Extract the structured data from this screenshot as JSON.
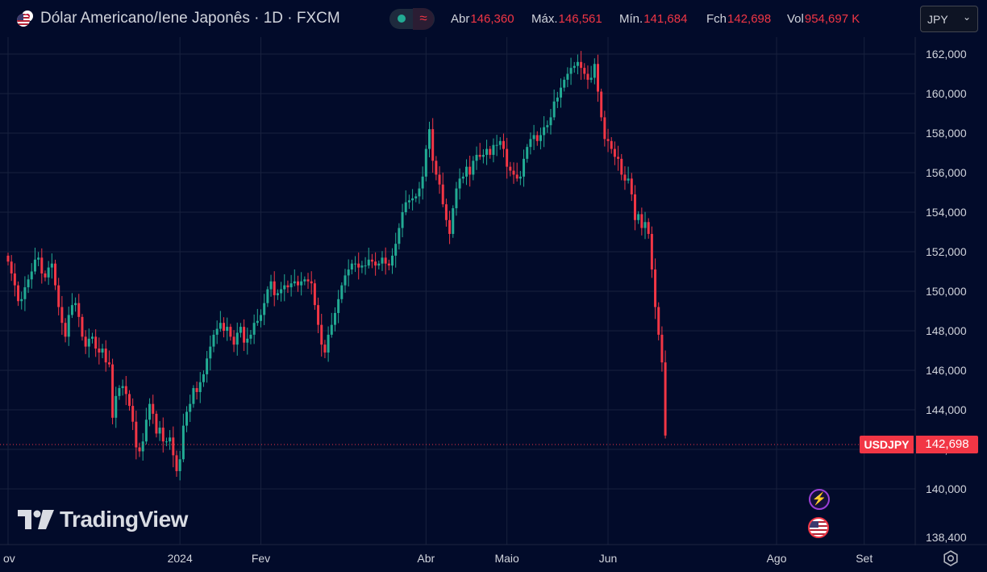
{
  "header": {
    "title": "Dólar Americano/Iene Japonês · 1D · FXCM",
    "flag_icon": "us-jp-flag-icon",
    "ohlc": [
      {
        "label": "Abr",
        "value": "146,360"
      },
      {
        "label": "Máx.",
        "value": "146,561"
      },
      {
        "label": "Mín.",
        "value": "141,684"
      },
      {
        "label": "Fch",
        "value": "142,698"
      },
      {
        "label": "Vol",
        "value": "954,697 K"
      }
    ],
    "currency_button": "JPY",
    "wave_icon": "≈"
  },
  "price_tag": {
    "symbol": "USDJPY",
    "value": "142,698"
  },
  "logo": {
    "text": "TradingView"
  },
  "colors": {
    "background": "#020b2a",
    "up": "#22ab94",
    "down": "#f23645",
    "grid": "#18213e",
    "text": "#d1d4dc"
  },
  "chart_data": {
    "type": "candlestick",
    "title": "Dólar Americano/Iene Japonês · 1D · FXCM",
    "y_ticks": [
      "162,000",
      "160,000",
      "158,000",
      "156,000",
      "154,000",
      "152,000",
      "150,000",
      "148,000",
      "146,000",
      "144,000",
      "142,000",
      "140,000",
      "138,400"
    ],
    "y_tick_values": [
      162,
      160,
      158,
      156,
      154,
      152,
      150,
      148,
      146,
      144,
      142,
      140,
      138.4
    ],
    "x_ticks": [
      "ov",
      "2024",
      "Fev",
      "Abr",
      "Maio",
      "Jun",
      "Ago",
      "Set"
    ],
    "x_tick_index": [
      0,
      51,
      75,
      124,
      148,
      178,
      228,
      254
    ],
    "last_price": 142.698,
    "closes": [
      151.5,
      150.9,
      150.3,
      149.5,
      149.6,
      150.2,
      150.6,
      151.0,
      151.6,
      151.7,
      150.9,
      150.7,
      151.2,
      151.4,
      150.3,
      149.2,
      148.4,
      147.7,
      148.8,
      149.3,
      149.4,
      148.7,
      147.7,
      147.2,
      147.6,
      147.7,
      147.1,
      146.9,
      147.1,
      146.4,
      146.3,
      143.6,
      144.7,
      145.1,
      145.2,
      144.8,
      144.2,
      143.4,
      142.1,
      141.9,
      142.4,
      143.5,
      144.3,
      143.8,
      142.8,
      143.1,
      142.4,
      142.4,
      142.6,
      141.7,
      140.9,
      141.5,
      143.2,
      143.9,
      144.3,
      145.1,
      144.9,
      145.4,
      145.8,
      146.6,
      147.2,
      147.8,
      148.1,
      148.4,
      148.0,
      148.2,
      147.7,
      147.3,
      147.9,
      148.2,
      147.4,
      147.6,
      147.8,
      148.4,
      148.5,
      148.8,
      149.4,
      150.1,
      150.5,
      149.8,
      149.9,
      150.1,
      150.3,
      150.2,
      150.4,
      150.5,
      150.3,
      150.5,
      150.6,
      150.5,
      150.4,
      149.3,
      148.3,
      147.3,
      146.9,
      147.8,
      148.3,
      148.9,
      149.6,
      150.3,
      150.8,
      151.1,
      151.4,
      151.4,
      151.2,
      151.3,
      151.3,
      151.6,
      151.5,
      151.3,
      151.4,
      151.7,
      151.4,
      151.3,
      151.8,
      152.4,
      153.2,
      154.0,
      154.5,
      154.6,
      154.7,
      154.8,
      155.2,
      155.8,
      157.2,
      158.2,
      156.6,
      155.9,
      155.4,
      154.4,
      153.6,
      152.9,
      154.2,
      155.2,
      155.7,
      155.8,
      156.3,
      155.9,
      156.6,
      156.9,
      156.8,
      156.9,
      157.2,
      156.9,
      157.4,
      157.4,
      157.6,
      157.2,
      156.3,
      156.1,
      155.9,
      155.7,
      155.8,
      156.7,
      157.3,
      157.7,
      157.9,
      157.6,
      157.9,
      158.3,
      158.4,
      158.8,
      159.6,
      159.8,
      160.3,
      160.7,
      161.0,
      161.3,
      161.4,
      161.6,
      161.3,
      161.0,
      160.7,
      160.8,
      161.5,
      160.1,
      158.8,
      157.7,
      157.6,
      157.2,
      156.8,
      156.7,
      155.9,
      155.6,
      155.7,
      154.9,
      153.6,
      153.9,
      153.2,
      153.5,
      152.9,
      151.1,
      149.2,
      147.8,
      146.4,
      142.7
    ]
  }
}
